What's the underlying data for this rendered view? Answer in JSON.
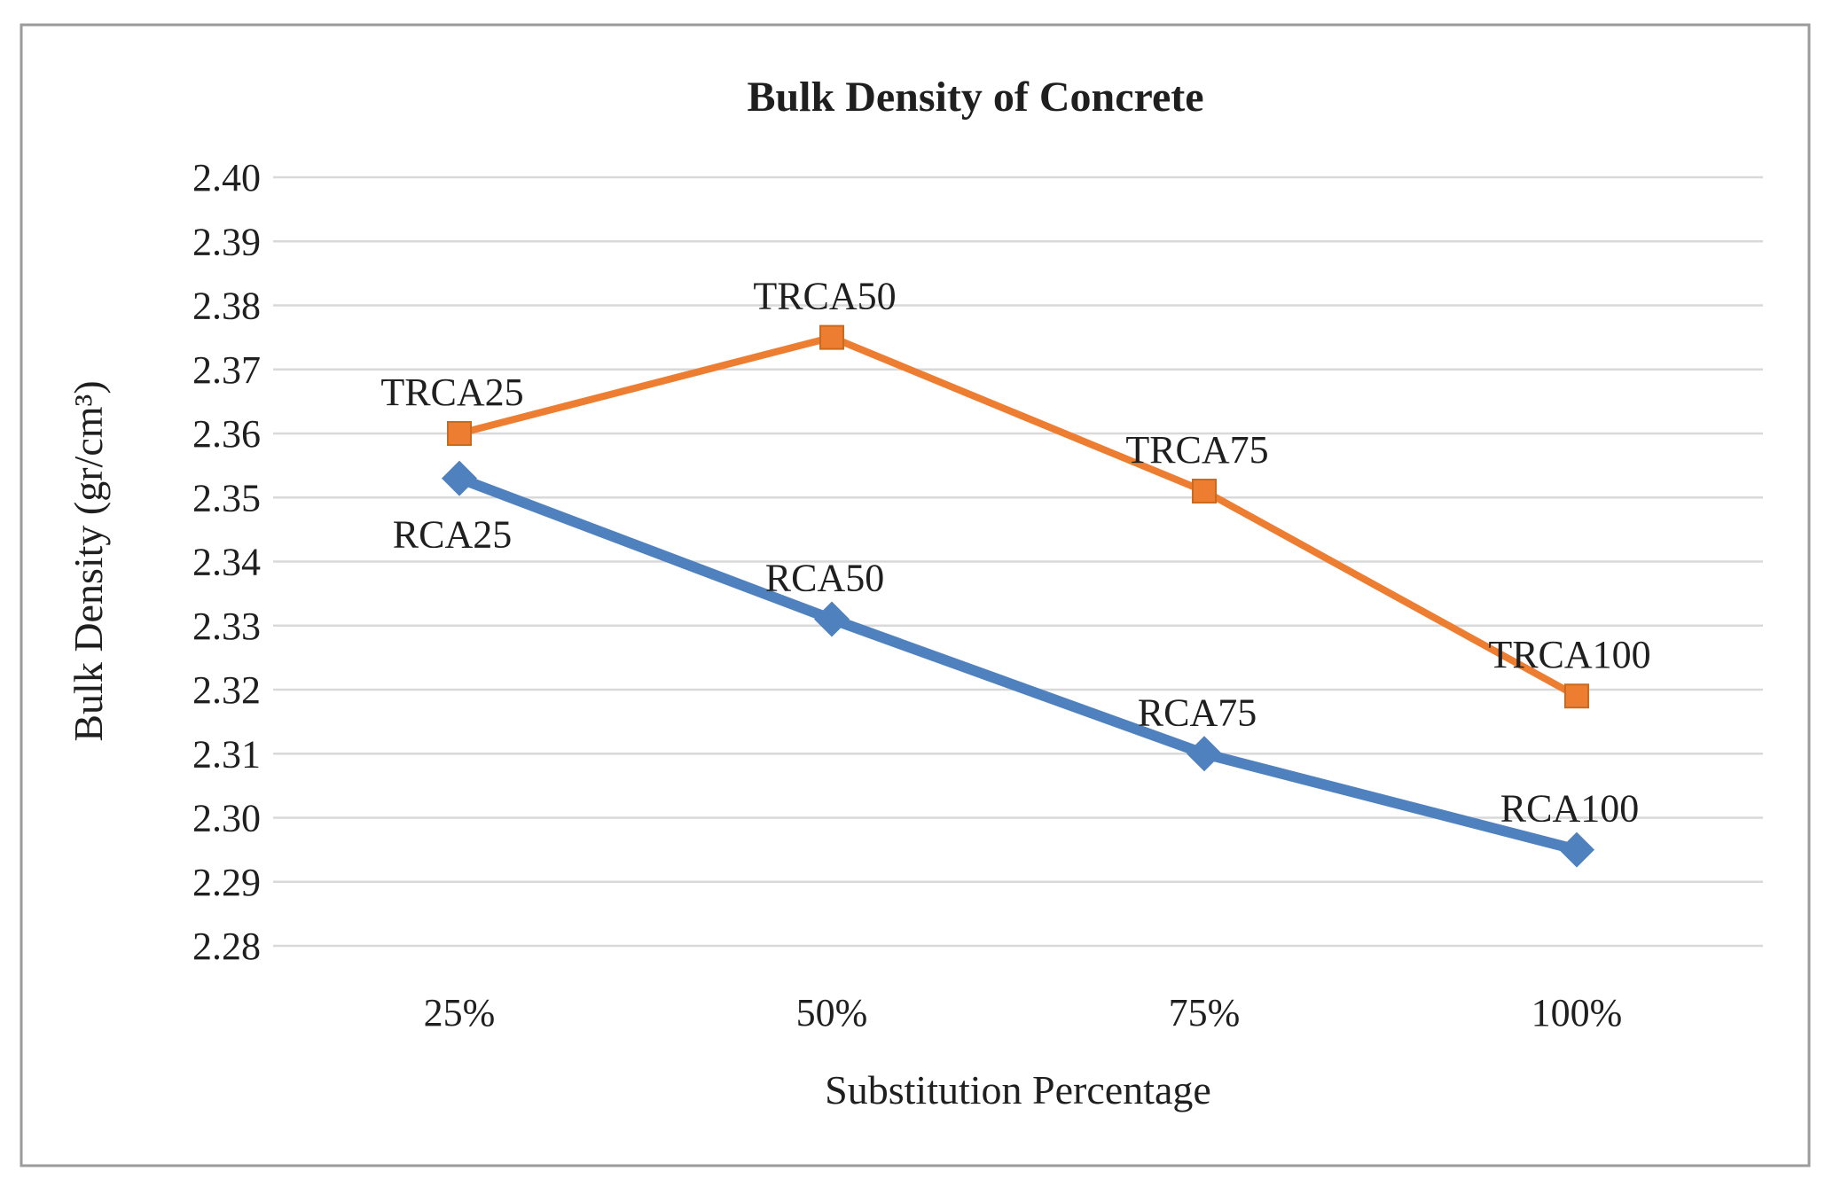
{
  "chart_data": {
    "type": "line",
    "title": "Bulk Density of Concrete",
    "xlabel": "Substitution Percentage",
    "ylabel": "Bulk Density (gr/cm³)",
    "categories": [
      "25%",
      "50%",
      "75%",
      "100%"
    ],
    "ylim": [
      2.28,
      2.4
    ],
    "ytick_step": 0.01,
    "ytick_decimals": 2,
    "grid": true,
    "legend_position": "none",
    "series": [
      {
        "name": "TRCA",
        "color": "#ED7D31",
        "marker": "square",
        "line_width": 8,
        "values": [
          2.36,
          2.375,
          2.351,
          2.319
        ],
        "point_labels": [
          "TRCA25",
          "TRCA50",
          "TRCA75",
          "TRCA100"
        ],
        "label_positions": [
          "above",
          "above",
          "above",
          "above"
        ]
      },
      {
        "name": "RCA",
        "color": "#4E81BD",
        "marker": "diamond",
        "line_width": 12,
        "values": [
          2.353,
          2.331,
          2.31,
          2.295
        ],
        "point_labels": [
          "RCA25",
          "RCA50",
          "RCA75",
          "RCA100"
        ],
        "label_positions": [
          "below",
          "above",
          "above",
          "above"
        ]
      }
    ]
  },
  "colors": {
    "gridline": "#D9D9D9",
    "frame_border": "#9B9B9B",
    "text": "#1f1f1f",
    "background": "#FFFFFF"
  }
}
